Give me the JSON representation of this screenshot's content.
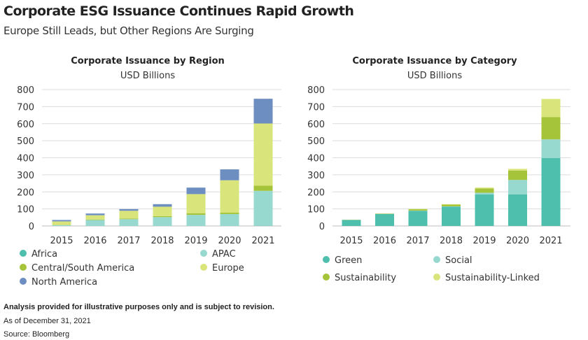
{
  "title": "Corporate ESG Issuance Continues Rapid Growth",
  "subtitle": "Europe Still Leads, but Other Regions Are Surging",
  "footer": {
    "disclaimer": "Analysis provided for illustrative purposes only and is subject to revision.",
    "as_of": "As of December 31, 2021",
    "source": "Source: Bloomberg"
  },
  "colors": {
    "Africa": "#4fbfad",
    "APAC": "#97d8cf",
    "Central/South America": "#a6c43a",
    "Europe": "#d9e47a",
    "North America": "#6c8ec0",
    "Green": "#4fbfad",
    "Social": "#97d8cf",
    "Sustainability": "#a6c43a",
    "Sustainability-Linked": "#d9e47a"
  },
  "chart_data": [
    {
      "type": "bar",
      "stacked": true,
      "title": "Corporate Issuance by Region",
      "subtitle": "USD Billions",
      "categories": [
        "2015",
        "2016",
        "2017",
        "2018",
        "2019",
        "2020",
        "2021"
      ],
      "ylim": [
        0,
        800
      ],
      "yticks": [
        0,
        100,
        200,
        300,
        400,
        500,
        600,
        700,
        800
      ],
      "grid": true,
      "legend_position": "bottom",
      "series": [
        {
          "name": "Africa",
          "values": [
            0,
            0,
            0,
            0,
            0,
            0,
            1
          ]
        },
        {
          "name": "APAC",
          "values": [
            5,
            35,
            40,
            52,
            65,
            70,
            205
          ]
        },
        {
          "name": "Central/South America",
          "values": [
            2,
            3,
            4,
            6,
            10,
            8,
            30
          ]
        },
        {
          "name": "Europe",
          "values": [
            20,
            25,
            45,
            55,
            112,
            190,
            365
          ]
        },
        {
          "name": "North America",
          "values": [
            8,
            10,
            10,
            15,
            38,
            64,
            145
          ]
        }
      ]
    },
    {
      "type": "bar",
      "stacked": true,
      "title": "Corporate Issuance by Category",
      "subtitle": "USD Billions",
      "categories": [
        "2015",
        "2016",
        "2017",
        "2018",
        "2019",
        "2020",
        "2021"
      ],
      "ylim": [
        0,
        800
      ],
      "yticks": [
        0,
        100,
        200,
        300,
        400,
        500,
        600,
        700,
        800
      ],
      "grid": true,
      "legend_position": "bottom",
      "series": [
        {
          "name": "Green",
          "values": [
            35,
            70,
            88,
            113,
            185,
            185,
            398
          ]
        },
        {
          "name": "Social",
          "values": [
            1,
            1,
            2,
            2,
            10,
            85,
            110
          ]
        },
        {
          "name": "Sustainability",
          "values": [
            1,
            2,
            8,
            10,
            25,
            55,
            130
          ]
        },
        {
          "name": "Sustainability-Linked",
          "values": [
            0,
            0,
            2,
            3,
            5,
            10,
            107
          ]
        }
      ]
    }
  ]
}
